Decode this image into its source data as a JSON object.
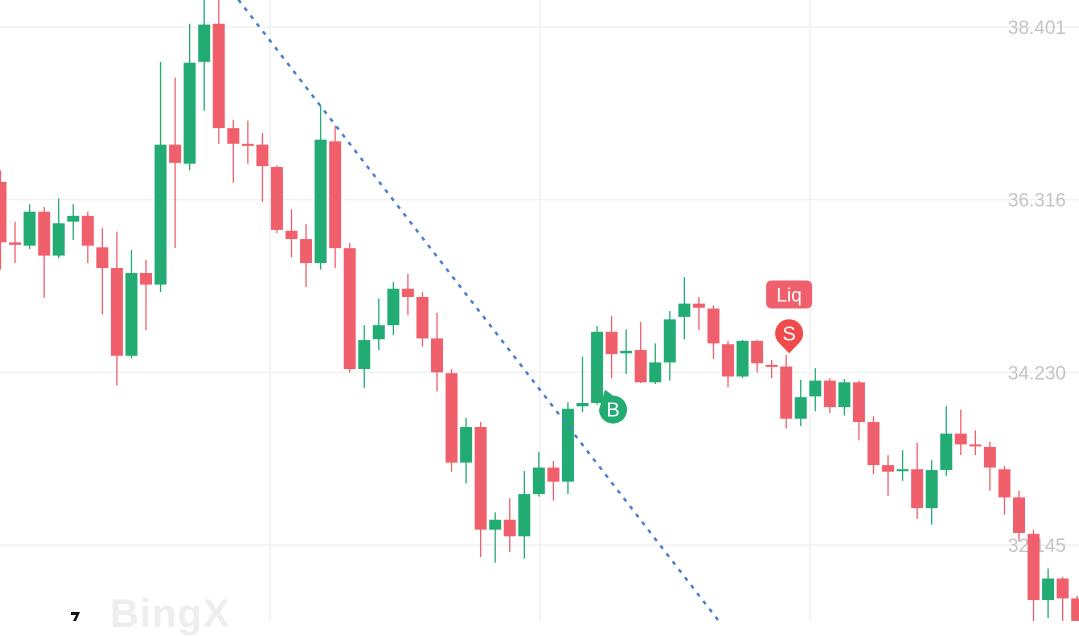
{
  "chart_data": {
    "type": "candlestick",
    "title": "",
    "ylim": [
      31.227,
      38.727
    ],
    "grid": true,
    "price_ticks": [
      {
        "value": 38.401,
        "label": "38.401"
      },
      {
        "value": 36.316,
        "label": "36.316"
      },
      {
        "value": 34.23,
        "label": "34.230"
      },
      {
        "value": 32.145,
        "label": "32.145"
      }
    ],
    "colors": {
      "up": "#22ab73",
      "down": "#f0606c",
      "trendline": "#4a7fd0",
      "grid": "#f1f1f1"
    },
    "candles_ohlc": [
      [
        36.53,
        36.67,
        35.47,
        35.8
      ],
      [
        35.8,
        36.05,
        35.55,
        35.77
      ],
      [
        35.76,
        36.26,
        35.72,
        36.17
      ],
      [
        36.17,
        36.23,
        35.13,
        35.64
      ],
      [
        35.64,
        36.33,
        35.61,
        36.03
      ],
      [
        36.05,
        36.26,
        35.83,
        36.12
      ],
      [
        36.12,
        36.17,
        35.55,
        35.76
      ],
      [
        35.74,
        35.97,
        34.93,
        35.49
      ],
      [
        35.49,
        35.93,
        34.07,
        34.43
      ],
      [
        34.43,
        35.71,
        34.4,
        35.43
      ],
      [
        35.43,
        35.59,
        34.74,
        35.29
      ],
      [
        35.29,
        37.98,
        35.2,
        36.98
      ],
      [
        36.98,
        37.79,
        35.73,
        36.76
      ],
      [
        36.75,
        38.44,
        36.67,
        37.97
      ],
      [
        37.98,
        38.79,
        37.39,
        38.43
      ],
      [
        38.44,
        38.79,
        36.99,
        37.18
      ],
      [
        37.18,
        37.28,
        36.52,
        36.99
      ],
      [
        36.99,
        37.27,
        36.75,
        36.98
      ],
      [
        36.98,
        37.12,
        36.29,
        36.72
      ],
      [
        36.71,
        36.73,
        35.91,
        35.95
      ],
      [
        35.94,
        36.2,
        35.62,
        35.84
      ],
      [
        35.84,
        36.02,
        35.26,
        35.55
      ],
      [
        35.55,
        37.45,
        35.47,
        37.04
      ],
      [
        37.02,
        37.21,
        35.49,
        35.73
      ],
      [
        35.73,
        35.79,
        34.23,
        34.27
      ],
      [
        34.27,
        34.8,
        34.04,
        34.62
      ],
      [
        34.63,
        35.12,
        34.5,
        34.8
      ],
      [
        34.8,
        35.32,
        34.68,
        35.24
      ],
      [
        35.24,
        35.42,
        34.92,
        35.14
      ],
      [
        35.14,
        35.2,
        34.54,
        34.64
      ],
      [
        34.64,
        34.95,
        34.0,
        34.23
      ],
      [
        34.22,
        34.27,
        33.03,
        33.14
      ],
      [
        33.14,
        33.68,
        32.89,
        33.57
      ],
      [
        33.57,
        33.63,
        32.0,
        32.33
      ],
      [
        32.33,
        32.54,
        31.93,
        32.45
      ],
      [
        32.45,
        32.71,
        32.06,
        32.25
      ],
      [
        32.25,
        33.04,
        31.98,
        32.76
      ],
      [
        32.76,
        33.27,
        32.73,
        33.08
      ],
      [
        33.08,
        33.16,
        32.68,
        32.91
      ],
      [
        32.91,
        33.87,
        32.76,
        33.79
      ],
      [
        33.82,
        34.42,
        33.75,
        33.86
      ],
      [
        33.86,
        34.79,
        33.84,
        34.72
      ],
      [
        34.72,
        34.91,
        34.16,
        34.45
      ],
      [
        34.46,
        34.75,
        34.21,
        34.49
      ],
      [
        34.5,
        34.84,
        34.1,
        34.11
      ],
      [
        34.11,
        34.58,
        34.09,
        34.35
      ],
      [
        34.35,
        34.97,
        34.13,
        34.87
      ],
      [
        34.9,
        35.38,
        34.63,
        35.06
      ],
      [
        35.06,
        35.14,
        34.74,
        35.01
      ],
      [
        35.0,
        35.04,
        34.39,
        34.58
      ],
      [
        34.57,
        34.61,
        34.05,
        34.18
      ],
      [
        34.18,
        34.62,
        34.16,
        34.61
      ],
      [
        34.61,
        34.62,
        34.23,
        34.34
      ],
      [
        34.32,
        34.38,
        34.16,
        34.31
      ],
      [
        34.3,
        34.44,
        33.55,
        33.67
      ],
      [
        33.67,
        34.14,
        33.58,
        33.93
      ],
      [
        33.94,
        34.28,
        33.76,
        34.13
      ],
      [
        34.13,
        34.16,
        33.74,
        33.81
      ],
      [
        33.81,
        34.15,
        33.71,
        34.11
      ],
      [
        34.11,
        34.13,
        33.41,
        33.63
      ],
      [
        33.63,
        33.7,
        33.0,
        33.11
      ],
      [
        33.11,
        33.23,
        32.74,
        33.03
      ],
      [
        33.04,
        33.29,
        32.92,
        33.06
      ],
      [
        33.06,
        33.38,
        32.46,
        32.59
      ],
      [
        32.59,
        33.17,
        32.39,
        33.05
      ],
      [
        33.05,
        33.82,
        32.98,
        33.49
      ],
      [
        33.49,
        33.78,
        33.23,
        33.36
      ],
      [
        33.36,
        33.53,
        33.23,
        33.34
      ],
      [
        33.33,
        33.39,
        32.8,
        33.08
      ],
      [
        33.06,
        33.1,
        32.51,
        32.72
      ],
      [
        32.72,
        32.8,
        32.19,
        32.29
      ],
      [
        32.28,
        32.33,
        31.12,
        31.48
      ],
      [
        31.48,
        31.86,
        31.26,
        31.74
      ],
      [
        31.74,
        31.76,
        31.12,
        31.5
      ],
      [
        31.5,
        31.53,
        31.12,
        31.18
      ]
    ],
    "trendline": {
      "style": "dotted",
      "start": {
        "candle": 16.35,
        "price": 38.73
      },
      "end": {
        "candle": 49.35,
        "price": 31.23
      }
    },
    "markers": [
      {
        "type": "buy",
        "text": "B",
        "candle": 42.1,
        "price": 33.78,
        "color": "#22ab73"
      },
      {
        "type": "sell",
        "text": "S",
        "candle": 54.2,
        "price": 34.7,
        "color": "#f04a4a"
      }
    ],
    "annotations": [
      {
        "text": "Liq",
        "candle": 54.2,
        "price": 35.17,
        "color": "#f0606c"
      }
    ]
  },
  "watermark": "BingX"
}
